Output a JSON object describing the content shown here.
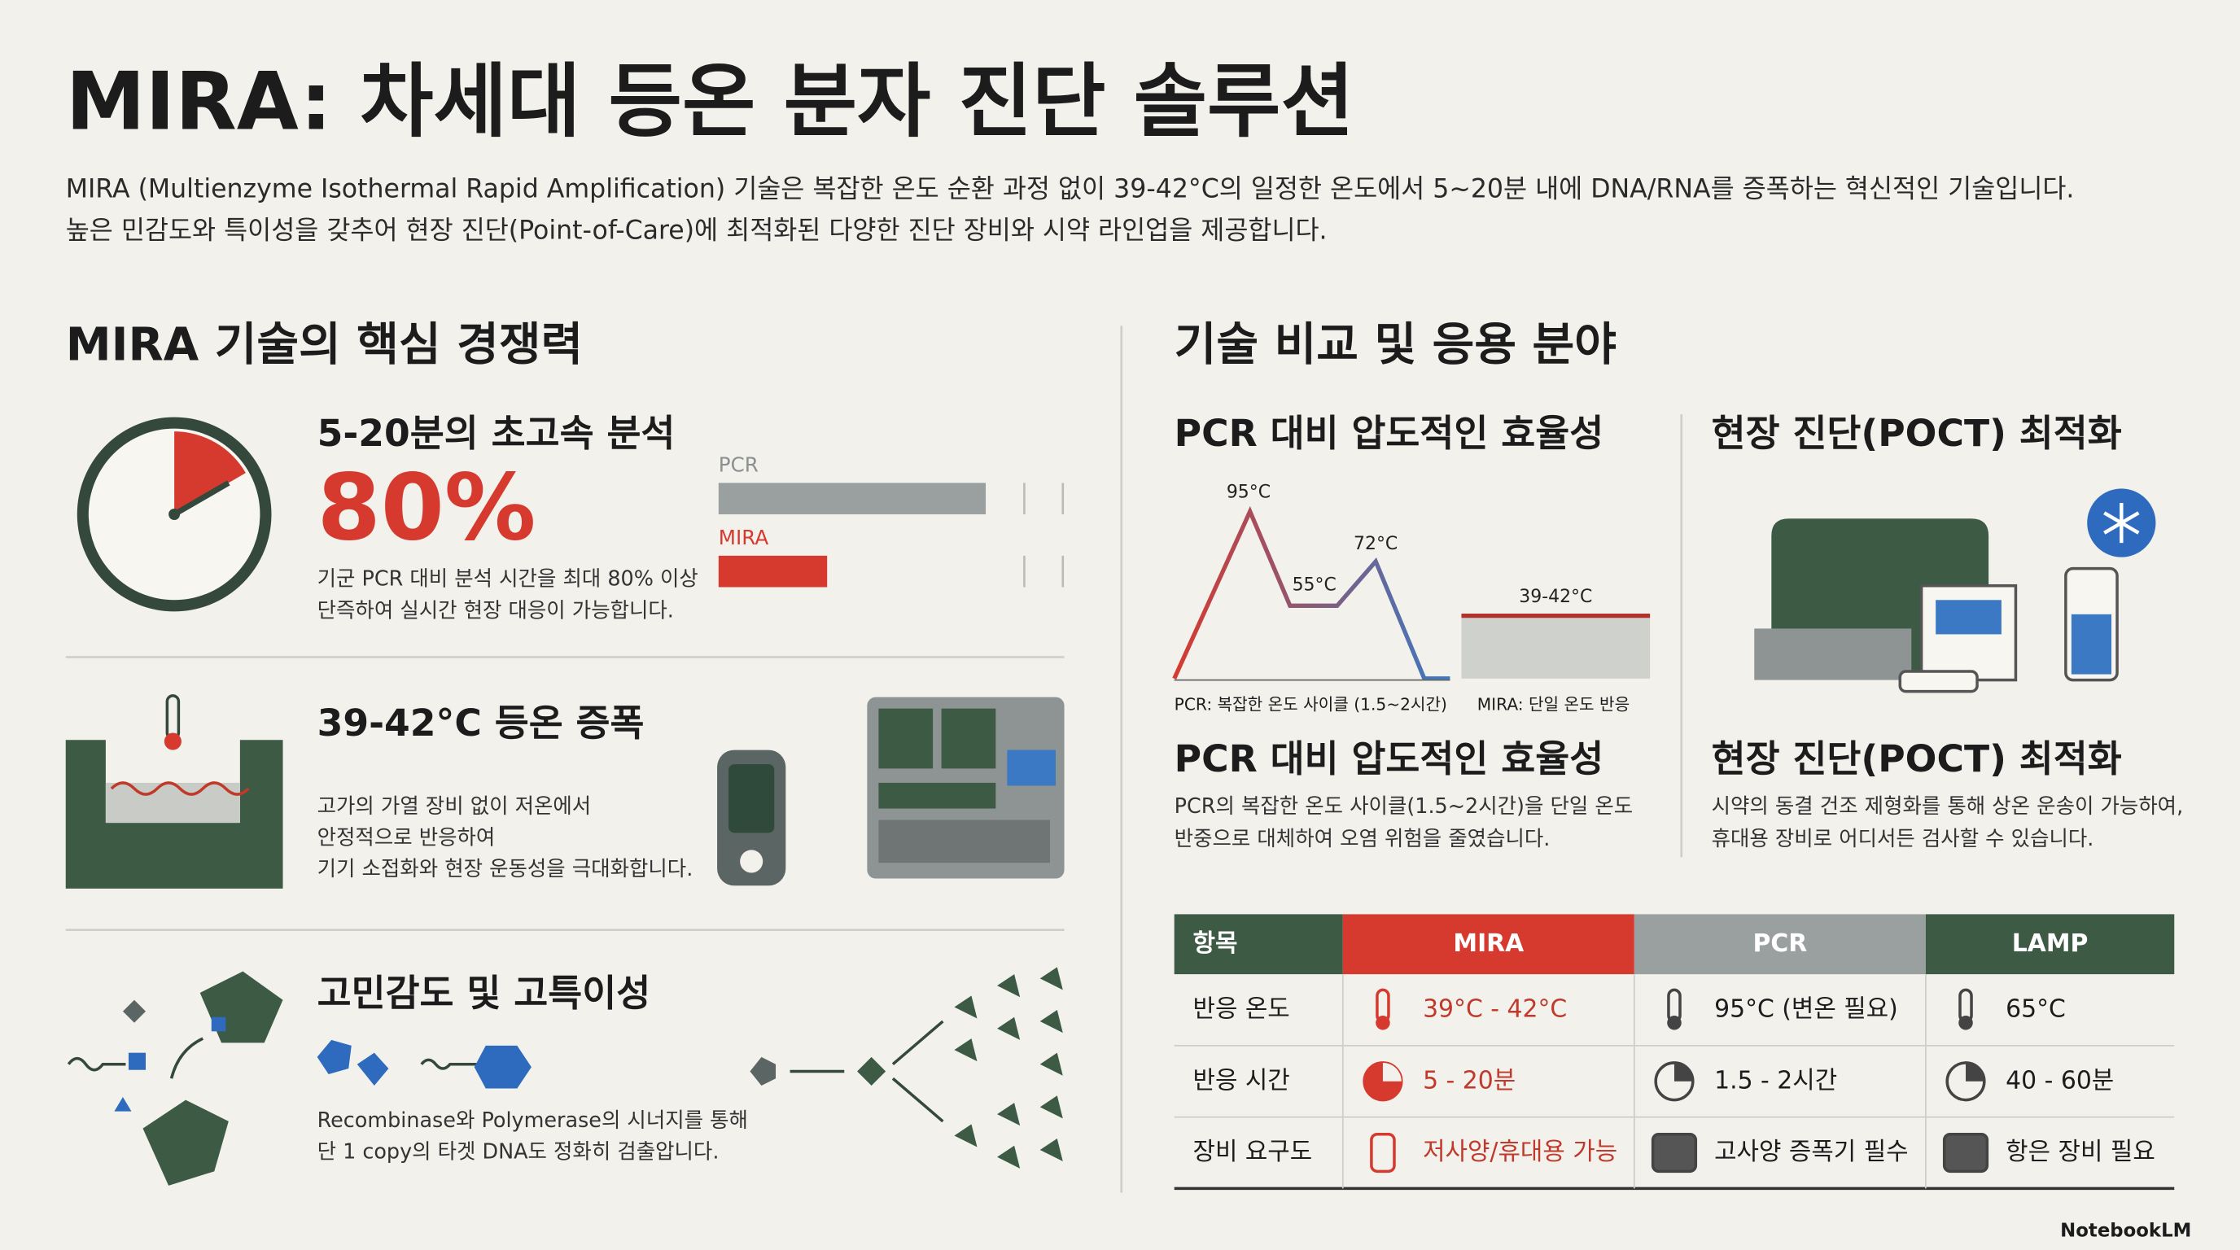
{
  "header": {
    "title": "MIRA: 차세대 등온 분자 진단 솔루션",
    "description": [
      "MIRA (Multienzyme Isothermal Rapid Amplification) 기술은 복잡한 온도 순환 과정 없이 39-42°C의 일정한 온도에서 5~20분 내에 DNA/RNA를 증폭하는 혁신적인 기술입니다.",
      "높은 민감도와 특이성을 갖추어 현장 진단(Point-of-Care)에 최적화된 다양한 진단 장비와 시약 라인업을 제공합니다."
    ]
  },
  "left_section": {
    "title": "MIRA 기술의 핵심 경쟁력",
    "speed_labels": [
      "PCR",
      "MIRA"
    ],
    "features": [
      {
        "title": "5-20분의 초고속 분석",
        "highlight": "80%",
        "description": [
          "기군 PCR 대비 분석 시간을 최대 80% 이상",
          "단즉하여 실시간 현장 대응이 가능합니다."
        ]
      },
      {
        "title": "39-42°C 등온 증폭",
        "description": [
          "고가의 가열 장비 없이 저온에서",
          "안정적으로 반응하여",
          "기기 소접화와 현장 운동성을 극대화합니다."
        ]
      },
      {
        "title": "고민감도 및 고특이성",
        "description": [
          "Recombinase와 Polymerase의 시너지를 통해",
          "단 1 copy의 타겟 DNA도 정화히 검출압니다."
        ]
      }
    ]
  },
  "right_section": {
    "title": "기술 비교 및 응용 분야",
    "poct_title": "현장 진단(POCT) 최적화",
    "diagram": {
      "title": "PCR 대비 압도적인 효율성",
      "labels": [
        "95°C",
        "55°C",
        "72°C",
        "39-42°C"
      ],
      "captions": [
        "PCR: 복잡한 온도 사이클 (1.5~2시간)",
        "MIRA: 단일 온도 반응"
      ]
    },
    "efficiency": {
      "title": "PCR 대비 압도적인 효율성",
      "description": [
        "PCR의 복잡한 온도 사이클(1.5~2시간)을 단일 온도",
        "반중으로 대체하여 오염 위험을 줄였습니다."
      ]
    },
    "poct": {
      "title": "현장 진단(POCT) 최적화",
      "description": [
        "시약의 동결 건조 제형화를 통해 상온 운송이 가능하여,",
        "휴대용 장비로 어디서든 검사할 수 있습니다."
      ]
    }
  },
  "table": {
    "headers": [
      "항목",
      "MIRA",
      "PCR",
      "LAMP"
    ],
    "rows": [
      [
        "반응 온도",
        "39°C - 42°C",
        "95°C (변온 필요)",
        "65°C"
      ],
      [
        "반응 시간",
        "5 - 20분",
        "1.5 - 2시간",
        "40 - 60분"
      ],
      [
        "장비 요구도",
        "저사양/휴대용 가능",
        "고사양 증폭기 필수",
        "항은 장비 필요"
      ]
    ]
  },
  "footer": {
    "brand": "NotebookLM"
  }
}
